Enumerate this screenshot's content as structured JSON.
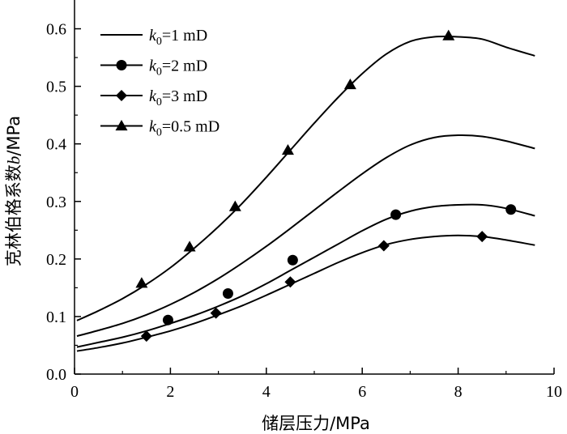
{
  "chart_data": {
    "type": "line",
    "title": "",
    "xlabel": "储层压力/MPa",
    "ylabel": "克林伯格系数b/MPa",
    "ylabel_parts": {
      "text": "克林伯格系数",
      "var": "b",
      "unit": "/MPa"
    },
    "xlim": [
      0,
      10
    ],
    "ylim": [
      0,
      0.65
    ],
    "x_ticks": [
      0,
      2,
      4,
      6,
      8,
      10
    ],
    "x_tick_labels": [
      "0",
      "2",
      "4",
      "6",
      "8",
      "10"
    ],
    "y_ticks": [
      0.0,
      0.1,
      0.2,
      0.3,
      0.4,
      0.5,
      0.6
    ],
    "y_tick_labels": [
      "0.0",
      "0.1",
      "0.2",
      "0.3",
      "0.4",
      "0.5",
      "0.6"
    ],
    "grid": false,
    "legend_position": "top-left",
    "series": [
      {
        "name": "k0=1 mD",
        "legend": {
          "var": "k",
          "sub": "0",
          "rest": "=1 mD"
        },
        "marker": "none",
        "curve_x": [
          0.05,
          0.5,
          1,
          1.5,
          2,
          2.5,
          3,
          3.5,
          4,
          4.5,
          5,
          5.5,
          6,
          6.5,
          7,
          7.5,
          8,
          8.5,
          9,
          9.6
        ],
        "curve_y": [
          0.066,
          0.076,
          0.088,
          0.103,
          0.121,
          0.142,
          0.166,
          0.193,
          0.222,
          0.253,
          0.285,
          0.317,
          0.348,
          0.376,
          0.398,
          0.411,
          0.415,
          0.413,
          0.405,
          0.392
        ],
        "points_x": [],
        "points_y": []
      },
      {
        "name": "k0=2 mD",
        "legend": {
          "var": "k",
          "sub": "0",
          "rest": "=2 mD"
        },
        "marker": "circle",
        "curve_x": [
          0.05,
          0.5,
          1,
          1.5,
          2,
          2.5,
          3,
          3.5,
          4,
          4.5,
          5,
          5.5,
          6,
          6.5,
          7,
          7.5,
          8,
          8.5,
          9,
          9.6
        ],
        "curve_y": [
          0.047,
          0.055,
          0.064,
          0.075,
          0.088,
          0.102,
          0.118,
          0.136,
          0.157,
          0.18,
          0.203,
          0.226,
          0.249,
          0.269,
          0.283,
          0.291,
          0.294,
          0.294,
          0.288,
          0.275
        ],
        "points_x": [
          1.95,
          3.2,
          4.55,
          6.7,
          9.1
        ],
        "points_y": [
          0.094,
          0.14,
          0.198,
          0.277,
          0.286
        ]
      },
      {
        "name": "k0=3 mD",
        "legend": {
          "var": "k",
          "sub": "0",
          "rest": "=3 mD"
        },
        "marker": "diamond",
        "curve_x": [
          0.05,
          0.5,
          1,
          1.5,
          2,
          2.5,
          3,
          3.5,
          4,
          4.5,
          5,
          5.5,
          6,
          6.5,
          7,
          7.5,
          8,
          8.5,
          9,
          9.6
        ],
        "curve_y": [
          0.04,
          0.046,
          0.054,
          0.064,
          0.075,
          0.088,
          0.103,
          0.119,
          0.137,
          0.156,
          0.175,
          0.194,
          0.211,
          0.225,
          0.234,
          0.239,
          0.241,
          0.239,
          0.233,
          0.224
        ],
        "points_x": [
          1.5,
          2.95,
          4.5,
          6.45,
          8.5
        ],
        "points_y": [
          0.066,
          0.106,
          0.16,
          0.223,
          0.239
        ]
      },
      {
        "name": "k0=0.5 mD",
        "legend": {
          "var": "k",
          "sub": "0",
          "rest": "=0.5 mD"
        },
        "marker": "triangle",
        "curve_x": [
          0.05,
          0.5,
          1,
          1.5,
          2,
          2.5,
          3,
          3.5,
          4,
          4.5,
          5,
          5.5,
          6,
          6.5,
          7,
          7.5,
          8,
          8.5,
          9,
          9.6
        ],
        "curve_y": [
          0.093,
          0.11,
          0.131,
          0.156,
          0.185,
          0.219,
          0.256,
          0.297,
          0.342,
          0.389,
          0.436,
          0.481,
          0.522,
          0.556,
          0.578,
          0.586,
          0.586,
          0.582,
          0.568,
          0.553
        ],
        "points_x": [
          1.4,
          2.4,
          3.35,
          4.45,
          5.75,
          7.8
        ],
        "points_y": [
          0.158,
          0.221,
          0.291,
          0.389,
          0.503,
          0.588
        ]
      }
    ]
  }
}
